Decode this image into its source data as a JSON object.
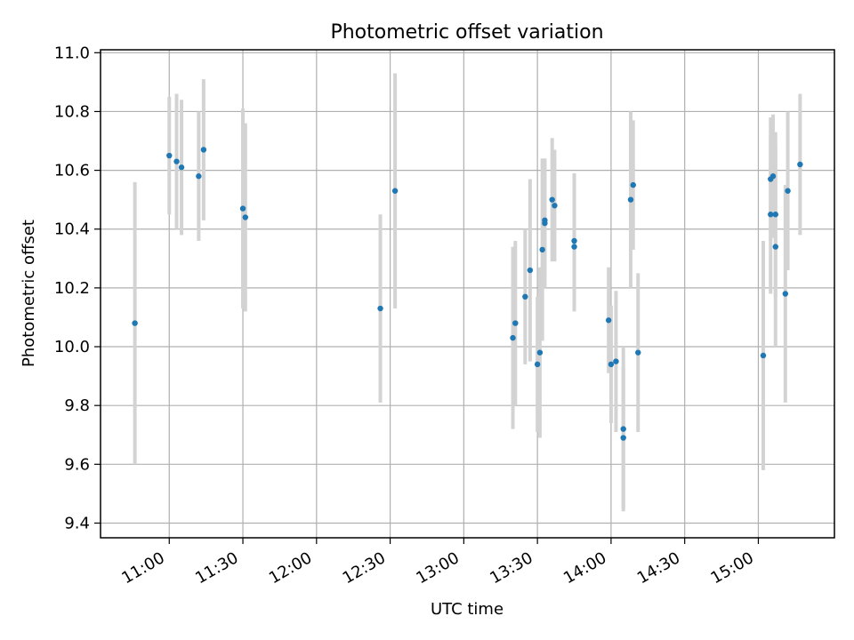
{
  "chart_data": {
    "type": "scatter",
    "title": "Photometric offset variation",
    "xlabel": "UTC time",
    "ylabel": "Photometric offset",
    "xlim": [
      "10:32",
      "15:31"
    ],
    "ylim": [
      9.35,
      11.01
    ],
    "grid": true,
    "x_ticks": [
      "11:00",
      "11:30",
      "12:00",
      "12:30",
      "13:00",
      "13:30",
      "14:00",
      "14:30",
      "15:00"
    ],
    "y_ticks": [
      "9.4",
      "9.6",
      "9.8",
      "10.0",
      "10.2",
      "10.4",
      "10.6",
      "10.8",
      "11.0"
    ],
    "colors": {
      "point": "#1f77b4",
      "errorbar": "#d3d3d3",
      "grid": "#b0b0b0"
    },
    "points": [
      {
        "x": "10:46",
        "y": 10.08,
        "err": 0.48
      },
      {
        "x": "11:00",
        "y": 10.65,
        "err": 0.2
      },
      {
        "x": "11:03",
        "y": 10.63,
        "err": 0.23
      },
      {
        "x": "11:05",
        "y": 10.61,
        "err": 0.23
      },
      {
        "x": "11:12",
        "y": 10.58,
        "err": 0.22
      },
      {
        "x": "11:14",
        "y": 10.67,
        "err": 0.24
      },
      {
        "x": "11:30",
        "y": 10.47,
        "err": 0.34
      },
      {
        "x": "11:31",
        "y": 10.44,
        "err": 0.32
      },
      {
        "x": "12:26",
        "y": 10.13,
        "err": 0.32
      },
      {
        "x": "12:32",
        "y": 10.53,
        "err": 0.4
      },
      {
        "x": "13:20",
        "y": 10.03,
        "err": 0.31
      },
      {
        "x": "13:21",
        "y": 10.08,
        "err": 0.28
      },
      {
        "x": "13:25",
        "y": 10.17,
        "err": 0.23
      },
      {
        "x": "13:27",
        "y": 10.26,
        "err": 0.31
      },
      {
        "x": "13:30",
        "y": 9.94,
        "err": 0.23
      },
      {
        "x": "13:31",
        "y": 9.98,
        "err": 0.29
      },
      {
        "x": "13:32",
        "y": 10.33,
        "err": 0.31
      },
      {
        "x": "13:33",
        "y": 10.42,
        "err": 0.22
      },
      {
        "x": "13:33",
        "y": 10.43,
        "err": 0.21
      },
      {
        "x": "13:36",
        "y": 10.5,
        "err": 0.21
      },
      {
        "x": "13:37",
        "y": 10.48,
        "err": 0.19
      },
      {
        "x": "13:45",
        "y": 10.34,
        "err": 0.22
      },
      {
        "x": "13:45",
        "y": 10.36,
        "err": 0.23
      },
      {
        "x": "13:59",
        "y": 10.09,
        "err": 0.18
      },
      {
        "x": "14:00",
        "y": 9.94,
        "err": 0.2
      },
      {
        "x": "14:02",
        "y": 9.95,
        "err": 0.24
      },
      {
        "x": "14:05",
        "y": 9.72,
        "err": 0.28
      },
      {
        "x": "14:05",
        "y": 9.69,
        "err": 0.24
      },
      {
        "x": "14:08",
        "y": 10.5,
        "err": 0.3
      },
      {
        "x": "14:09",
        "y": 10.55,
        "err": 0.22
      },
      {
        "x": "14:11",
        "y": 9.98,
        "err": 0.27
      },
      {
        "x": "15:02",
        "y": 9.97,
        "err": 0.39
      },
      {
        "x": "15:05",
        "y": 10.45,
        "err": 0.27
      },
      {
        "x": "15:05",
        "y": 10.57,
        "err": 0.21
      },
      {
        "x": "15:06",
        "y": 10.58,
        "err": 0.21
      },
      {
        "x": "15:07",
        "y": 10.45,
        "err": 0.28
      },
      {
        "x": "15:07",
        "y": 10.34,
        "err": 0.34
      },
      {
        "x": "15:11",
        "y": 10.18,
        "err": 0.37
      },
      {
        "x": "15:12",
        "y": 10.53,
        "err": 0.27
      },
      {
        "x": "15:17",
        "y": 10.62,
        "err": 0.24
      }
    ]
  }
}
